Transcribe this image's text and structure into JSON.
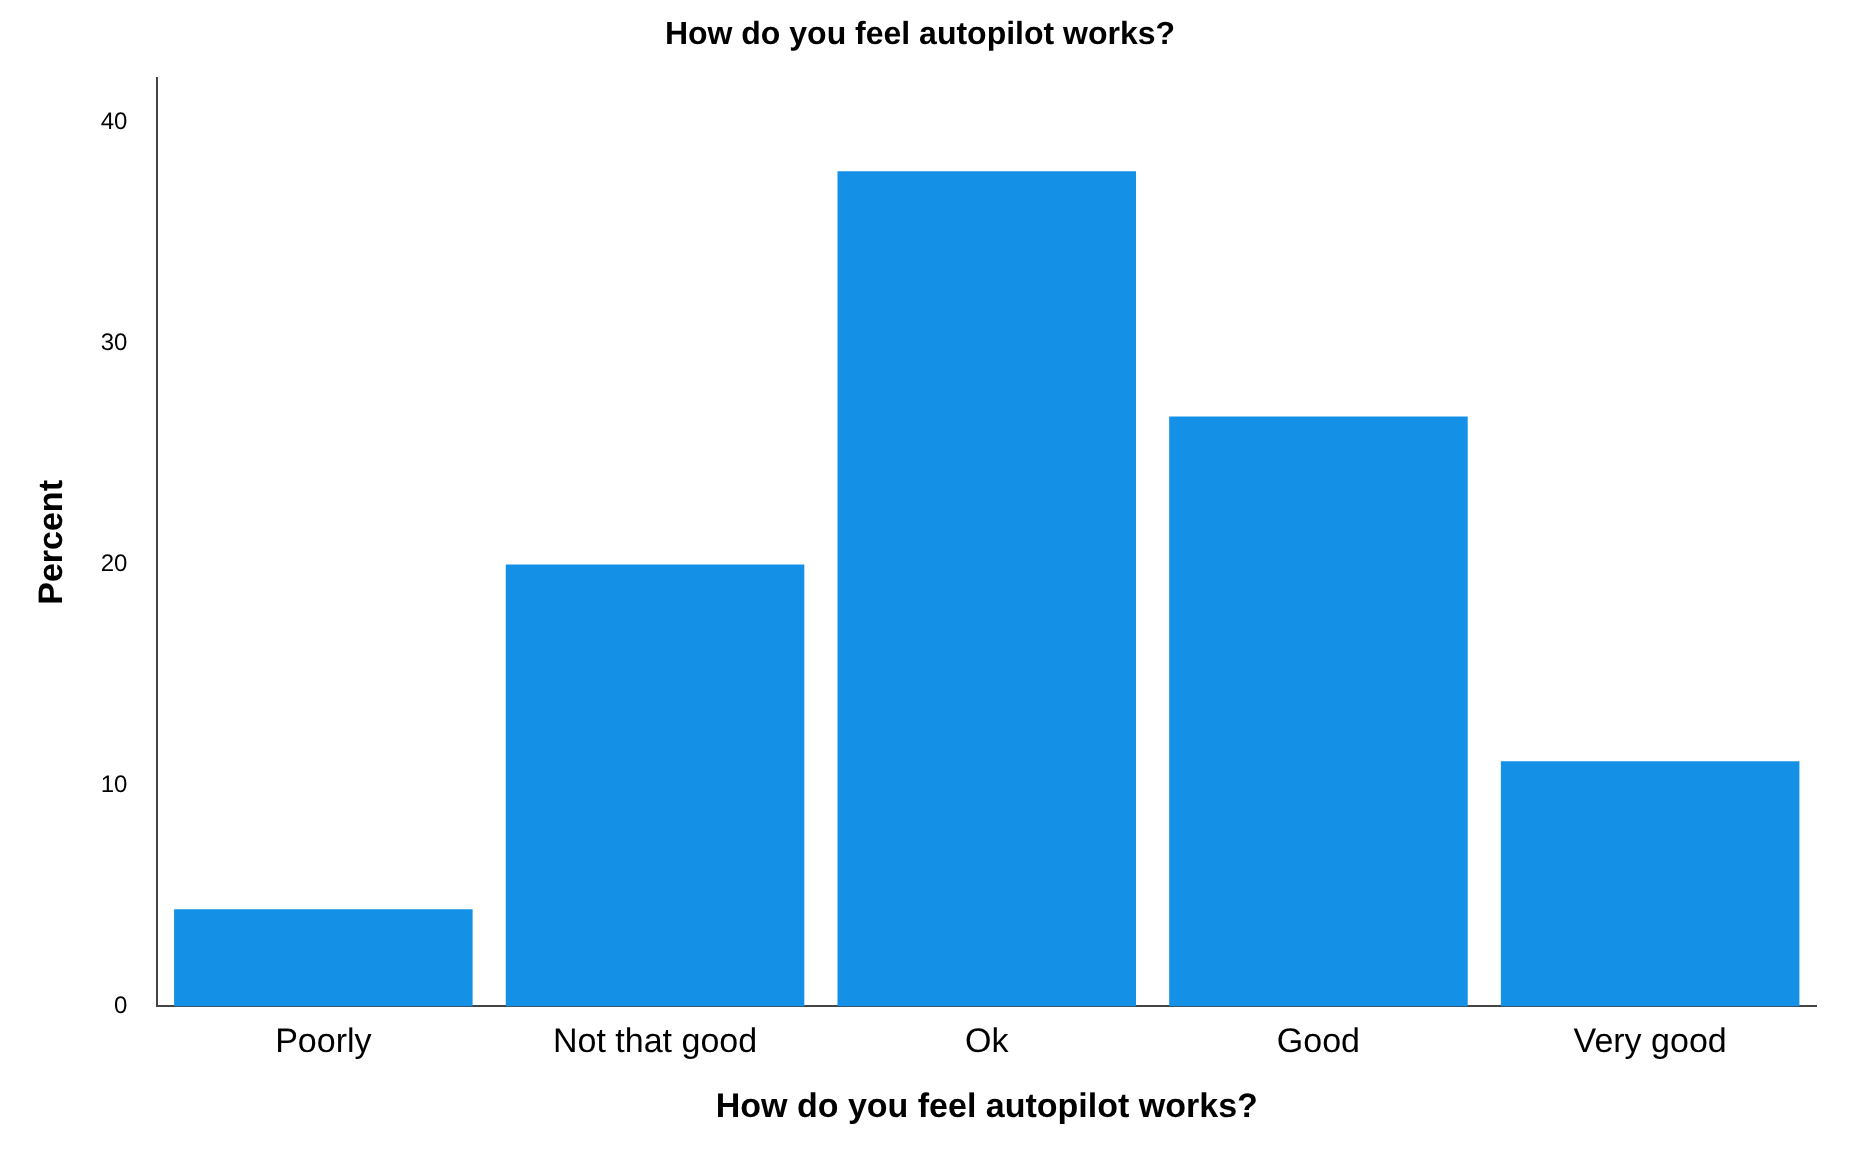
{
  "chart_data": {
    "type": "bar",
    "title": "How do you feel autopilot works?",
    "xlabel": "How do you feel autopilot works?",
    "ylabel": "Percent",
    "categories": [
      "Poorly",
      "Not that good",
      "Ok",
      "Good",
      "Very good"
    ],
    "values": [
      4.4,
      20.0,
      37.8,
      26.7,
      11.1
    ],
    "color": "#1491e6",
    "ylim": [
      0,
      42
    ],
    "yticks": [
      0,
      10,
      20,
      30,
      40
    ],
    "grid": false,
    "legend": false
  }
}
